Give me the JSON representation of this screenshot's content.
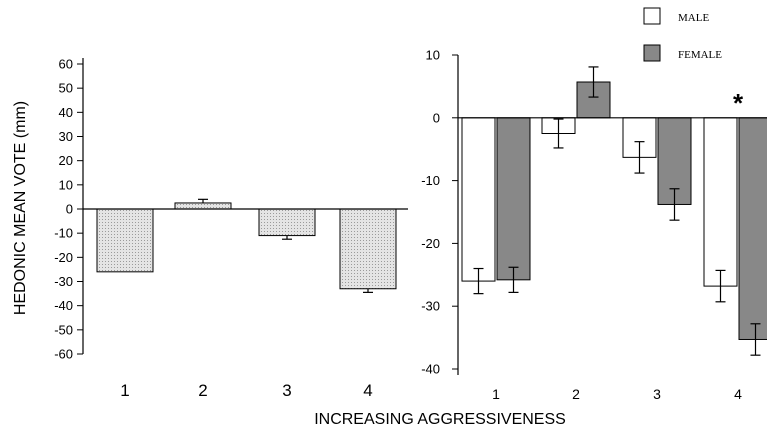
{
  "chart_data": [
    {
      "type": "bar",
      "xlabel": "INCREASING AGGRESSIVENESS",
      "ylabel": "HEDONIC MEAN VOTE (mm)",
      "categories": [
        "1",
        "2",
        "3",
        "4"
      ],
      "ylim": [
        -60,
        60
      ],
      "yticks": [
        60,
        50,
        40,
        30,
        20,
        10,
        0,
        -10,
        -20,
        -30,
        -40,
        -50,
        -60
      ],
      "series": [
        {
          "values": [
            -26,
            2.5,
            -11,
            -33
          ],
          "errors": [
            0,
            1.5,
            1.5,
            1.5
          ]
        }
      ],
      "colors": {
        "fill": "#e4e4e4",
        "stroke": "#000000"
      }
    },
    {
      "type": "bar",
      "categories": [
        "1",
        "2",
        "3",
        "4"
      ],
      "ylim": [
        -40,
        10
      ],
      "yticks": [
        10,
        0,
        -10,
        -20,
        -30,
        -40
      ],
      "legend_position": "top-right",
      "series": [
        {
          "name": "MALE",
          "values": [
            -26,
            -2.5,
            -6.3,
            -26.8
          ],
          "errors": [
            2,
            2.3,
            2.5,
            2.5
          ],
          "color": "#ffffff"
        },
        {
          "name": "FEMALE",
          "values": [
            -25.8,
            5.7,
            -13.8,
            -35.3
          ],
          "errors": [
            2,
            2.4,
            2.5,
            2.5
          ],
          "color": "#888888"
        }
      ],
      "annotations": [
        {
          "text": "*",
          "category": "4"
        }
      ]
    }
  ]
}
